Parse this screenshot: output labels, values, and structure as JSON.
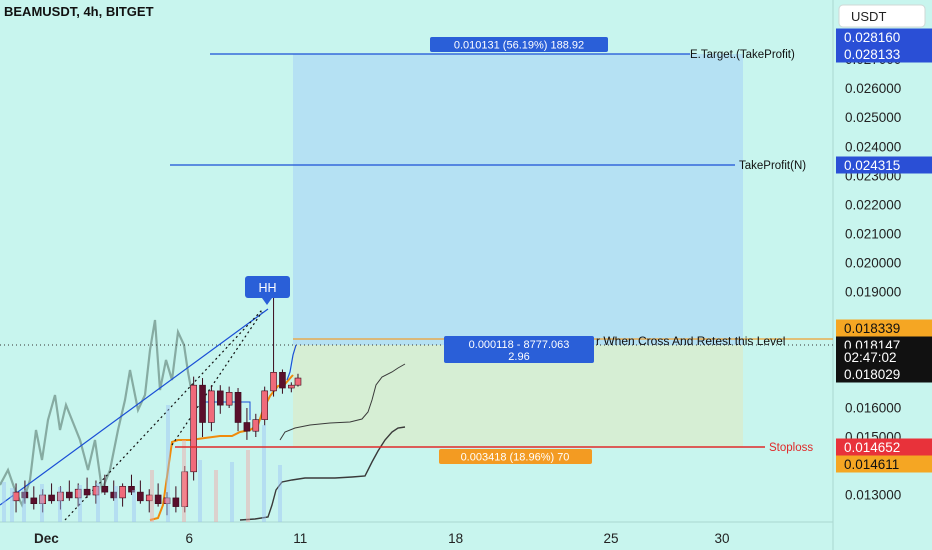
{
  "header": {
    "symbol": "BEAMUSDT, 4h, BITGET"
  },
  "price_axis": {
    "currency": "USDT"
  },
  "chart_data": {
    "type": "candlestick",
    "title": "BEAMUSDT, 4h, BITGET",
    "y_ticks": [
      0.027,
      0.026,
      0.025,
      0.024,
      0.023,
      0.022,
      0.021,
      0.02,
      0.019,
      0.016,
      0.015,
      0.013
    ],
    "y_tick_labels": [
      "0.027000",
      "0.026000",
      "0.025000",
      "0.024000",
      "0.023000",
      "0.022000",
      "0.021000",
      "0.020000",
      "0.019000",
      "0.016000",
      "0.015000",
      "0.013000"
    ],
    "x_tick_labels": [
      "Dec",
      "6",
      "11",
      "18",
      "25",
      "30"
    ],
    "x_ticks": [
      0,
      6,
      11,
      18,
      25,
      30
    ],
    "price_labels": [
      {
        "id": "top-target",
        "value": 0.02816,
        "text": "0.028160",
        "kind": "blue"
      },
      {
        "id": "e-target",
        "value": 0.028133,
        "text": "0.028133",
        "kind": "blue"
      },
      {
        "id": "takeprofit-n",
        "value": 0.024315,
        "text": "0.024315",
        "kind": "blue"
      },
      {
        "id": "entry",
        "value": 0.018339,
        "text": "0.018339",
        "kind": "orange"
      },
      {
        "id": "last",
        "value": 0.018147,
        "text": "0.018147",
        "kind": "black"
      },
      {
        "id": "countdown",
        "value": null,
        "text": "02:47:02",
        "kind": "black"
      },
      {
        "id": "prev",
        "value": 0.018029,
        "text": "0.018029",
        "kind": "black"
      },
      {
        "id": "stoploss",
        "value": 0.014652,
        "text": "0.014652",
        "kind": "red"
      },
      {
        "id": "low-orange",
        "value": 0.014611,
        "text": "0.014611",
        "kind": "orange"
      }
    ],
    "line_labels": {
      "e_target": "E.Target.(TakeProfit)",
      "takeprofit_n": "TakeProfit(N)",
      "entry": "r When Cross And Retest this Level",
      "stoploss": "Stoploss"
    },
    "position": {
      "profit_text": "0.010131 (56.19%) 188.92",
      "entry_text_1": "0.000118 - 8777.063",
      "entry_text_2": "2.96",
      "loss_text": "0.003418 (18.96%) 70"
    },
    "hh_label": "HH",
    "candles": [
      {
        "d": -1.8,
        "o": 0.0128,
        "h": 0.0134,
        "l": 0.0124,
        "c": 0.0131
      },
      {
        "d": -1.4,
        "o": 0.0131,
        "h": 0.0135,
        "l": 0.0127,
        "c": 0.0129
      },
      {
        "d": -1.0,
        "o": 0.0129,
        "h": 0.0133,
        "l": 0.0125,
        "c": 0.0127
      },
      {
        "d": -0.6,
        "o": 0.0127,
        "h": 0.0132,
        "l": 0.0124,
        "c": 0.013
      },
      {
        "d": -0.2,
        "o": 0.013,
        "h": 0.0134,
        "l": 0.0127,
        "c": 0.0128
      },
      {
        "d": 0.2,
        "o": 0.0128,
        "h": 0.0133,
        "l": 0.0125,
        "c": 0.0131
      },
      {
        "d": 0.6,
        "o": 0.0131,
        "h": 0.0135,
        "l": 0.0128,
        "c": 0.0129
      },
      {
        "d": 1.0,
        "o": 0.0129,
        "h": 0.0134,
        "l": 0.0126,
        "c": 0.0132
      },
      {
        "d": 1.4,
        "o": 0.0132,
        "h": 0.0136,
        "l": 0.0129,
        "c": 0.013
      },
      {
        "d": 1.8,
        "o": 0.013,
        "h": 0.0135,
        "l": 0.0127,
        "c": 0.0133
      },
      {
        "d": 2.2,
        "o": 0.0133,
        "h": 0.0137,
        "l": 0.013,
        "c": 0.0131
      },
      {
        "d": 2.6,
        "o": 0.0131,
        "h": 0.0135,
        "l": 0.0128,
        "c": 0.0129
      },
      {
        "d": 3.0,
        "o": 0.0129,
        "h": 0.0134,
        "l": 0.0126,
        "c": 0.0133
      },
      {
        "d": 3.4,
        "o": 0.0133,
        "h": 0.0137,
        "l": 0.013,
        "c": 0.0131
      },
      {
        "d": 3.8,
        "o": 0.0131,
        "h": 0.0135,
        "l": 0.0127,
        "c": 0.0128
      },
      {
        "d": 4.2,
        "o": 0.0128,
        "h": 0.0132,
        "l": 0.0124,
        "c": 0.013
      },
      {
        "d": 4.6,
        "o": 0.013,
        "h": 0.0134,
        "l": 0.0126,
        "c": 0.0127
      },
      {
        "d": 5.0,
        "o": 0.0127,
        "h": 0.0131,
        "l": 0.0123,
        "c": 0.0129
      },
      {
        "d": 5.4,
        "o": 0.0129,
        "h": 0.0133,
        "l": 0.0124,
        "c": 0.0126
      },
      {
        "d": 5.8,
        "o": 0.0126,
        "h": 0.014,
        "l": 0.0124,
        "c": 0.0138
      },
      {
        "d": 6.2,
        "o": 0.0138,
        "h": 0.0182,
        "l": 0.0135,
        "c": 0.0176
      },
      {
        "d": 6.6,
        "o": 0.0176,
        "h": 0.0181,
        "l": 0.015,
        "c": 0.0155
      },
      {
        "d": 7.0,
        "o": 0.0155,
        "h": 0.0176,
        "l": 0.0152,
        "c": 0.0172
      },
      {
        "d": 7.4,
        "o": 0.0172,
        "h": 0.0176,
        "l": 0.0158,
        "c": 0.0162
      },
      {
        "d": 7.8,
        "o": 0.0162,
        "h": 0.0175,
        "l": 0.016,
        "c": 0.0171
      },
      {
        "d": 8.2,
        "o": 0.0171,
        "h": 0.0174,
        "l": 0.0152,
        "c": 0.0155
      },
      {
        "d": 8.6,
        "o": 0.0155,
        "h": 0.016,
        "l": 0.0149,
        "c": 0.0152
      },
      {
        "d": 9.0,
        "o": 0.0152,
        "h": 0.0158,
        "l": 0.015,
        "c": 0.0156
      },
      {
        "d": 9.4,
        "o": 0.0156,
        "h": 0.0175,
        "l": 0.0154,
        "c": 0.0172
      },
      {
        "d": 9.8,
        "o": 0.0172,
        "h": 0.0194,
        "l": 0.0168,
        "c": 0.0185
      },
      {
        "d": 10.2,
        "o": 0.0185,
        "h": 0.0187,
        "l": 0.017,
        "c": 0.0174
      },
      {
        "d": 10.6,
        "o": 0.0174,
        "h": 0.0178,
        "l": 0.0171,
        "c": 0.0176
      },
      {
        "d": 10.9,
        "o": 0.0176,
        "h": 0.0184,
        "l": 0.0175,
        "c": 0.0181
      }
    ]
  }
}
